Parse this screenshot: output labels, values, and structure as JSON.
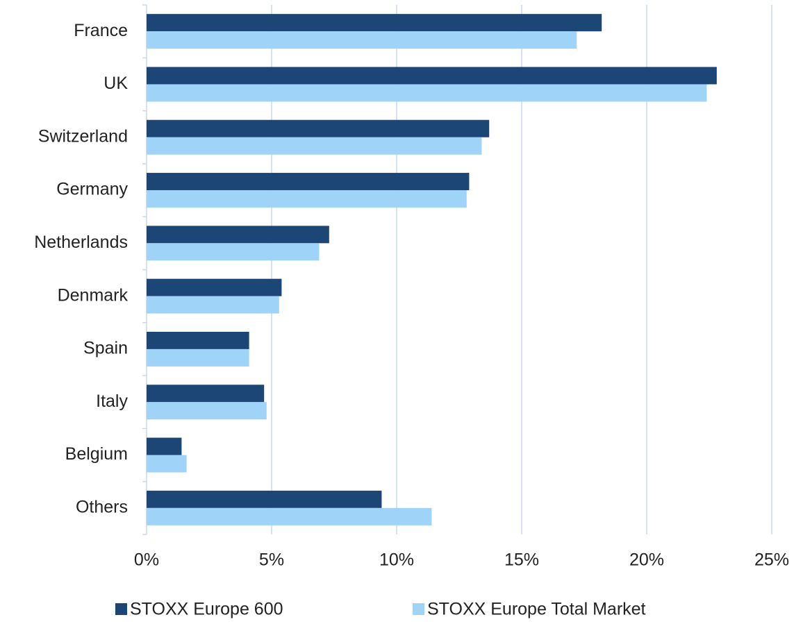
{
  "chart_data": {
    "type": "hbar",
    "categories": [
      "France",
      "UK",
      "Switzerland",
      "Germany",
      "Netherlands",
      "Denmark",
      "Spain",
      "Italy",
      "Belgium",
      "Others"
    ],
    "series": [
      {
        "name": "STOXX Europe 600",
        "color": "#1b4676",
        "values": [
          18.2,
          22.8,
          13.7,
          12.9,
          7.3,
          5.4,
          4.1,
          4.7,
          1.4,
          9.4
        ]
      },
      {
        "name": "STOXX Europe Total Market",
        "color": "#9fd3f8",
        "values": [
          17.2,
          22.4,
          13.4,
          12.8,
          6.9,
          5.3,
          4.1,
          4.8,
          1.6,
          11.4
        ]
      }
    ],
    "xlim": [
      0,
      25
    ],
    "xticks": [
      {
        "value": 0,
        "label": "0%"
      },
      {
        "value": 5,
        "label": "5%"
      },
      {
        "value": 10,
        "label": "10%"
      },
      {
        "value": 15,
        "label": "15%"
      },
      {
        "value": 20,
        "label": "20%"
      },
      {
        "value": 25,
        "label": "25%"
      }
    ],
    "grid": true,
    "legend": "bottom"
  }
}
